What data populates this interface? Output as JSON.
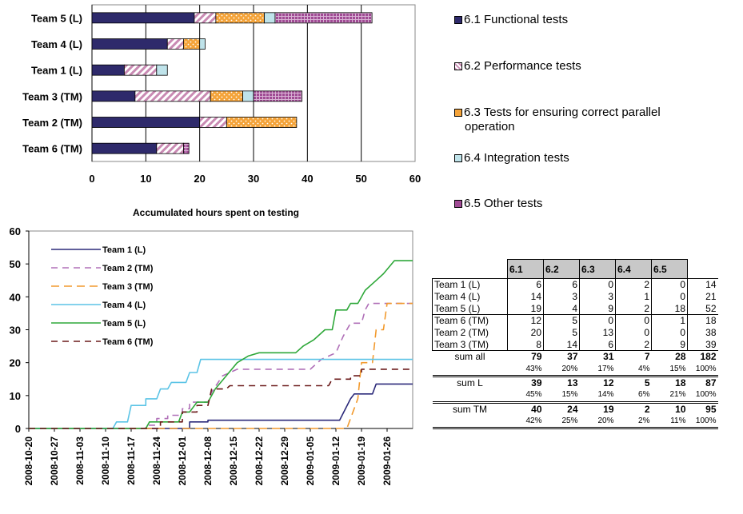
{
  "colors": {
    "functional": "#2e2a6b",
    "performance": "#c98ab3",
    "parallel": "#f4a339",
    "integration": "#bfe3ea",
    "other": "#a04b94",
    "team1": "#2c2a7a",
    "team2": "#b070b8",
    "team3": "#f29a2e",
    "team4": "#5bc4e6",
    "team5": "#2fa83a",
    "team6": "#6b1a1a"
  },
  "chart_data": [
    {
      "type": "bar",
      "orientation": "horizontal",
      "stacked": true,
      "title": "",
      "categories": [
        "Team 5 (L)",
        "Team 4 (L)",
        "Team 1 (L)",
        "Team 3 (TM)",
        "Team 2 (TM)",
        "Team 6 (TM)"
      ],
      "series": [
        {
          "name": "6.1 Functional tests",
          "values": [
            19,
            14,
            6,
            8,
            20,
            12
          ]
        },
        {
          "name": "6.2 Performance tests",
          "values": [
            4,
            3,
            6,
            14,
            5,
            5
          ]
        },
        {
          "name": "6.3 Tests for ensuring correct parallel operation",
          "values": [
            9,
            3,
            0,
            6,
            13,
            0
          ]
        },
        {
          "name": "6.4 Integration tests",
          "values": [
            2,
            1,
            2,
            2,
            0,
            0
          ]
        },
        {
          "name": "6.5 Other tests",
          "values": [
            18,
            0,
            0,
            9,
            0,
            1
          ]
        }
      ],
      "xlim": [
        0,
        60
      ],
      "xticks": [
        "0",
        "10",
        "20",
        "30",
        "40",
        "50",
        "60"
      ],
      "grid": true,
      "legend": "right"
    },
    {
      "type": "line",
      "title": "Accumulated hours spent on testing",
      "ylim": [
        0,
        60
      ],
      "yticks": [
        "0",
        "10",
        "20",
        "30",
        "40",
        "50",
        "60"
      ],
      "xlim": [
        "2008-10-20",
        "2009-02-02"
      ],
      "xticks": [
        "2008-10-20",
        "2008-10-27",
        "2008-11-03",
        "2008-11-10",
        "2008-11-17",
        "2008-11-24",
        "2008-12-01",
        "2008-12-08",
        "2008-12-15",
        "2008-12-22",
        "2008-12-29",
        "2009-01-05",
        "2009-01-12",
        "2009-01-19",
        "2009-01-26"
      ],
      "legend": "top-left",
      "series": [
        {
          "name": "Team 1 (L)",
          "style": "solid",
          "points": [
            [
              "2008-10-20",
              0
            ],
            [
              "2008-12-03",
              0
            ],
            [
              "2008-12-03",
              2
            ],
            [
              "2008-12-08",
              2
            ],
            [
              "2008-12-08",
              2.5
            ],
            [
              "2009-01-13",
              2.5
            ],
            [
              "2009-01-16",
              9
            ],
            [
              "2009-01-17",
              10.5
            ],
            [
              "2009-01-22",
              10.5
            ],
            [
              "2009-01-23",
              13.5
            ],
            [
              "2009-02-02",
              13.5
            ]
          ]
        },
        {
          "name": "Team 2 (TM)",
          "style": "dash",
          "points": [
            [
              "2008-10-20",
              0
            ],
            [
              "2008-11-21",
              0
            ],
            [
              "2008-11-21",
              1
            ],
            [
              "2008-11-24",
              1
            ],
            [
              "2008-11-24",
              3
            ],
            [
              "2008-11-27",
              3
            ],
            [
              "2008-11-27",
              4
            ],
            [
              "2008-12-01",
              4
            ],
            [
              "2008-12-01",
              6
            ],
            [
              "2008-12-03",
              6
            ],
            [
              "2008-12-03",
              8
            ],
            [
              "2008-12-08",
              8
            ],
            [
              "2008-12-09",
              11
            ],
            [
              "2008-12-12",
              16
            ],
            [
              "2008-12-16",
              18
            ],
            [
              "2009-01-05",
              18
            ],
            [
              "2009-01-08",
              21
            ],
            [
              "2009-01-12",
              23
            ],
            [
              "2009-01-14",
              28
            ],
            [
              "2009-01-16",
              32
            ],
            [
              "2009-01-19",
              32
            ],
            [
              "2009-01-20",
              36
            ],
            [
              "2009-01-21",
              38
            ],
            [
              "2009-02-02",
              38
            ]
          ]
        },
        {
          "name": "Team 3 (TM)",
          "style": "longdash",
          "points": [
            [
              "2008-10-20",
              0
            ],
            [
              "2009-01-15",
              0
            ],
            [
              "2009-01-18",
              9
            ],
            [
              "2009-01-19",
              20
            ],
            [
              "2009-01-22",
              20
            ],
            [
              "2009-01-23",
              30
            ],
            [
              "2009-01-25",
              30
            ],
            [
              "2009-01-26",
              38
            ],
            [
              "2009-02-02",
              38
            ]
          ]
        },
        {
          "name": "Team 4 (L)",
          "style": "solid",
          "points": [
            [
              "2008-10-20",
              0
            ],
            [
              "2008-11-12",
              0
            ],
            [
              "2008-11-13",
              2
            ],
            [
              "2008-11-16",
              2
            ],
            [
              "2008-11-17",
              7
            ],
            [
              "2008-11-21",
              7
            ],
            [
              "2008-11-21",
              9
            ],
            [
              "2008-11-24",
              9
            ],
            [
              "2008-11-25",
              12
            ],
            [
              "2008-11-27",
              12
            ],
            [
              "2008-11-28",
              14
            ],
            [
              "2008-12-02",
              14
            ],
            [
              "2008-12-03",
              17
            ],
            [
              "2008-12-05",
              17
            ],
            [
              "2008-12-06",
              21
            ],
            [
              "2009-02-02",
              21
            ]
          ]
        },
        {
          "name": "Team 5 (L)",
          "style": "solid",
          "points": [
            [
              "2008-10-20",
              0
            ],
            [
              "2008-11-21",
              0
            ],
            [
              "2008-11-22",
              2
            ],
            [
              "2008-11-30",
              2
            ],
            [
              "2008-12-01",
              5
            ],
            [
              "2008-12-03",
              5
            ],
            [
              "2008-12-05",
              8
            ],
            [
              "2008-12-08",
              8
            ],
            [
              "2008-12-10",
              12
            ],
            [
              "2008-12-13",
              16
            ],
            [
              "2008-12-16",
              20
            ],
            [
              "2008-12-19",
              22
            ],
            [
              "2008-12-22",
              23
            ],
            [
              "2009-01-01",
              23
            ],
            [
              "2009-01-03",
              25
            ],
            [
              "2009-01-06",
              27
            ],
            [
              "2009-01-09",
              30
            ],
            [
              "2009-01-11",
              30
            ],
            [
              "2009-01-12",
              36
            ],
            [
              "2009-01-15",
              36
            ],
            [
              "2009-01-16",
              38
            ],
            [
              "2009-01-18",
              38
            ],
            [
              "2009-01-20",
              42
            ],
            [
              "2009-01-23",
              45
            ],
            [
              "2009-01-25",
              47
            ],
            [
              "2009-01-28",
              51
            ],
            [
              "2009-02-02",
              51
            ]
          ]
        },
        {
          "name": "Team 6 (TM)",
          "style": "dash",
          "points": [
            [
              "2008-10-20",
              0
            ],
            [
              "2008-11-25",
              0
            ],
            [
              "2008-11-25",
              2
            ],
            [
              "2008-12-01",
              2
            ],
            [
              "2008-12-01",
              5
            ],
            [
              "2008-12-05",
              5
            ],
            [
              "2008-12-05",
              7
            ],
            [
              "2008-12-08",
              7
            ],
            [
              "2008-12-09",
              12
            ],
            [
              "2008-12-13",
              12
            ],
            [
              "2008-12-14",
              13
            ],
            [
              "2009-01-10",
              13
            ],
            [
              "2009-01-11",
              15
            ],
            [
              "2009-01-16",
              15
            ],
            [
              "2009-01-16",
              16
            ],
            [
              "2009-01-19",
              16
            ],
            [
              "2009-01-19",
              18
            ],
            [
              "2009-02-02",
              18
            ]
          ]
        }
      ]
    },
    {
      "type": "table",
      "columns": [
        "6.1",
        "6.2",
        "6.3",
        "6.4",
        "6.5"
      ],
      "rows": [
        {
          "label": "Team 1 (L)",
          "values": [
            "6",
            "6",
            "0",
            "2",
            "0"
          ],
          "total": "14"
        },
        {
          "label": "Team 4 (L)",
          "values": [
            "14",
            "3",
            "3",
            "1",
            "0"
          ],
          "total": "21"
        },
        {
          "label": "Team 5 (L)",
          "values": [
            "19",
            "4",
            "9",
            "2",
            "18"
          ],
          "total": "52"
        },
        {
          "label": "Team 6 (TM)",
          "values": [
            "12",
            "5",
            "0",
            "0",
            "1"
          ],
          "total": "18"
        },
        {
          "label": "Team 2 (TM)",
          "values": [
            "20",
            "5",
            "13",
            "0",
            "0"
          ],
          "total": "38"
        },
        {
          "label": "Team 3 (TM)",
          "values": [
            "8",
            "14",
            "6",
            "2",
            "9"
          ],
          "total": "39"
        }
      ],
      "sums": [
        {
          "label": "sum all",
          "values": [
            "79",
            "37",
            "31",
            "7",
            "28"
          ],
          "total": "182",
          "pct": [
            "43%",
            "20%",
            "17%",
            "4%",
            "15%"
          ],
          "pct_total": "100%"
        },
        {
          "label": "sum L",
          "values": [
            "39",
            "13",
            "12",
            "5",
            "18"
          ],
          "total": "87",
          "pct": [
            "45%",
            "15%",
            "14%",
            "6%",
            "21%"
          ],
          "pct_total": "100%"
        },
        {
          "label": "sum TM",
          "values": [
            "40",
            "24",
            "19",
            "2",
            "10"
          ],
          "total": "95",
          "pct": [
            "42%",
            "25%",
            "20%",
            "2%",
            "11%"
          ],
          "pct_total": "100%"
        }
      ]
    }
  ],
  "legend": {
    "functional": "6.1 Functional tests",
    "performance": "6.2 Performance tests",
    "parallel_line1": "6.3 Tests for ensuring correct parallel",
    "parallel_line2": "operation",
    "integration": "6.4 Integration tests",
    "other": "6.5 Other tests"
  }
}
